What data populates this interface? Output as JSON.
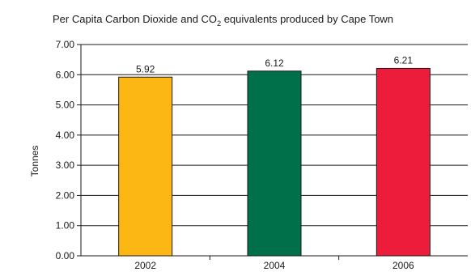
{
  "chart_data": {
    "type": "bar",
    "title_main": "Per Capita Carbon Dioxide and CO",
    "title_sub": "2",
    "title_rest": " equivalents produced by Cape Town",
    "ylabel": "Tonnes",
    "xlabel": "",
    "categories": [
      "2002",
      "2004",
      "2006"
    ],
    "values": [
      5.92,
      6.12,
      6.21
    ],
    "value_labels": [
      "5.92",
      "6.12",
      "6.21"
    ],
    "colors": [
      "#FDB714",
      "#00704A",
      "#ED1C3A"
    ],
    "ylim": [
      0,
      7
    ],
    "yticks": [
      "0.00",
      "1.00",
      "2.00",
      "3.00",
      "4.00",
      "5.00",
      "6.00",
      "7.00"
    ],
    "grid": true,
    "legend": "none"
  }
}
